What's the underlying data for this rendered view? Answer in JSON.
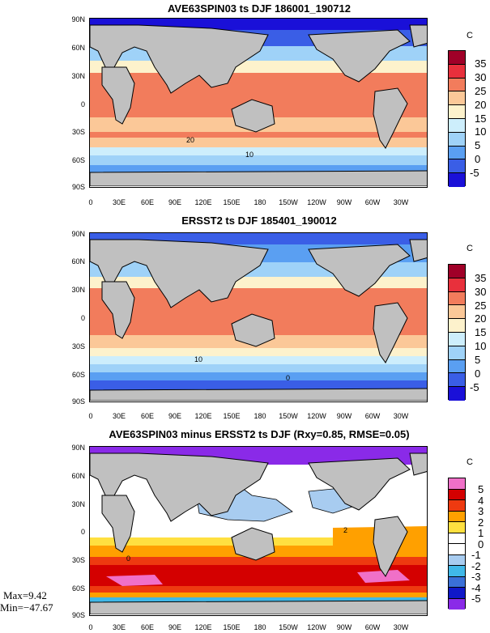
{
  "panels": [
    {
      "title": "AVE63SPIN03 ts DJF 186001_190712",
      "unit": "C",
      "colorbar_labels": [
        "35",
        "30",
        "25",
        "20",
        "15",
        "10",
        "5",
        "0",
        "-5"
      ],
      "colorbar_colors": [
        "#a00028",
        "#e8303c",
        "#f27c5c",
        "#fbc898",
        "#fdf2cc",
        "#cdeefc",
        "#9fd2f8",
        "#5a9ff2",
        "#3a5ee6",
        "#1a10d8"
      ],
      "contour_labels": [
        "20",
        "10"
      ]
    },
    {
      "title": "ERSST2 ts DJF 185401_190012",
      "unit": "C",
      "colorbar_labels": [
        "35",
        "30",
        "25",
        "20",
        "15",
        "10",
        "5",
        "0",
        "-5"
      ],
      "colorbar_colors": [
        "#a00028",
        "#e8303c",
        "#f27c5c",
        "#fbc898",
        "#fdf2cc",
        "#cdeefc",
        "#9fd2f8",
        "#5a9ff2",
        "#3a5ee6",
        "#1a10d8"
      ],
      "contour_labels": [
        "10",
        "0"
      ]
    },
    {
      "title": "AVE63SPIN03 minus ERSST2 ts DJF (Rxy=0.85, RMSE=0.05)",
      "unit": "C",
      "colorbar_labels": [
        "5",
        "4",
        "3",
        "2",
        "1",
        "0",
        "-1",
        "-2",
        "-3",
        "-4",
        "-5"
      ],
      "colorbar_colors": [
        "#f070c8",
        "#d40000",
        "#ee3a10",
        "#ffa000",
        "#ffe040",
        "#ffffff",
        "#ffffff",
        "#a8ccf0",
        "#40b8e8",
        "#3a70d8",
        "#1018c8",
        "#8a2ae8"
      ],
      "contour_labels": [
        "2",
        "0"
      ]
    }
  ],
  "lat_labels": [
    "90N",
    "60N",
    "30N",
    "0",
    "30S",
    "60S",
    "90S"
  ],
  "lon_labels": [
    "0",
    "30E",
    "60E",
    "90E",
    "120E",
    "150E",
    "180",
    "150W",
    "120W",
    "90W",
    "60W",
    "30W"
  ],
  "stats": {
    "max": "Max=9.42",
    "min": "Min=−47.67"
  }
}
